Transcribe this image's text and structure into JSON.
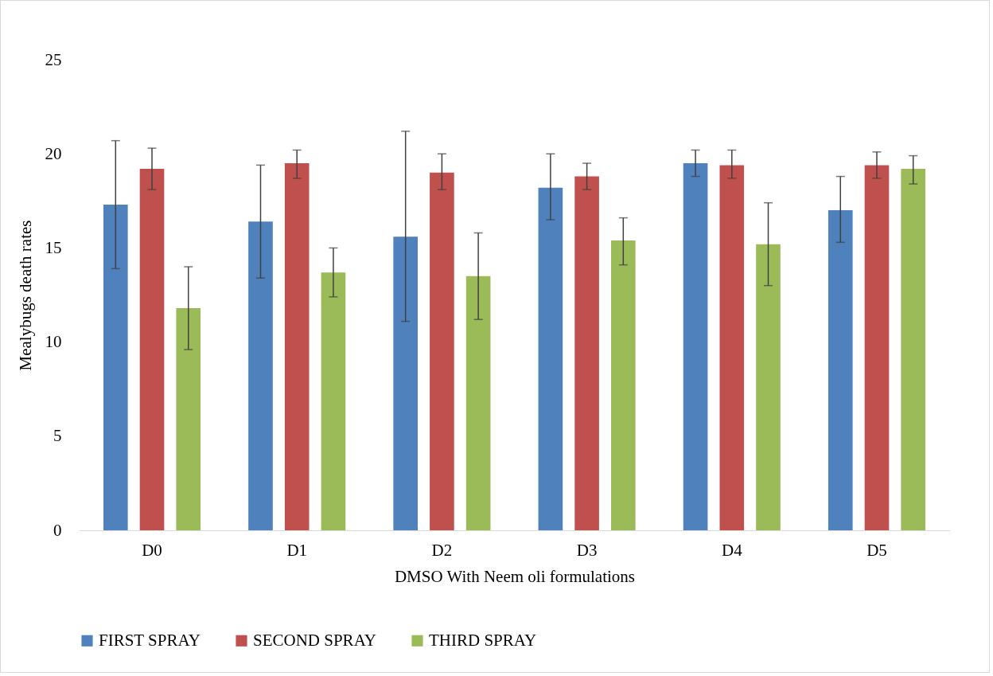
{
  "chart_data": {
    "type": "bar",
    "xlabel": "DMSO With Neem oli formulations",
    "ylabel": "Mealybugs death rates",
    "categories": [
      "D0",
      "D1",
      "D2",
      "D3",
      "D4",
      "D5"
    ],
    "ylim": [
      0,
      25
    ],
    "yticks": [
      0,
      5,
      10,
      15,
      20,
      25
    ],
    "grid": false,
    "legend": "bottom",
    "series": [
      {
        "name": "FIRST SPRAY",
        "color": "#4f81bd",
        "values": [
          17.3,
          16.4,
          15.6,
          18.2,
          19.5,
          17.0
        ],
        "errors": [
          [
            13.9,
            20.7
          ],
          [
            13.4,
            19.4
          ],
          [
            11.1,
            21.2
          ],
          [
            16.5,
            20.0
          ],
          [
            18.8,
            20.2
          ],
          [
            15.3,
            18.8
          ]
        ]
      },
      {
        "name": "SECOND SPRAY",
        "color": "#c0504d",
        "values": [
          19.2,
          19.5,
          19.0,
          18.8,
          19.4,
          19.4
        ],
        "errors": [
          [
            18.1,
            20.3
          ],
          [
            18.7,
            20.2
          ],
          [
            18.1,
            20.0
          ],
          [
            18.1,
            19.5
          ],
          [
            18.7,
            20.2
          ],
          [
            18.7,
            20.1
          ]
        ]
      },
      {
        "name": "THIRD SPRAY",
        "color": "#9bbb59",
        "values": [
          11.8,
          13.7,
          13.5,
          15.4,
          15.2,
          19.2
        ],
        "errors": [
          [
            9.6,
            14.0
          ],
          [
            12.4,
            15.0
          ],
          [
            11.2,
            15.8
          ],
          [
            14.1,
            16.6
          ],
          [
            13.0,
            17.4
          ],
          [
            18.4,
            19.9
          ]
        ]
      }
    ]
  }
}
